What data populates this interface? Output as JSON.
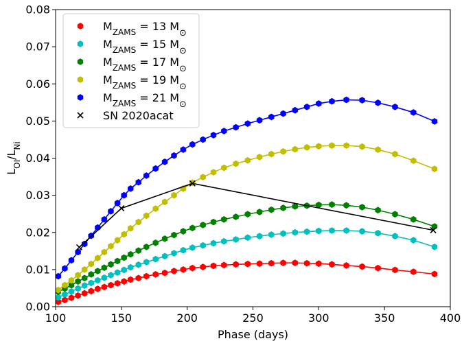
{
  "chart_data": {
    "type": "scatter",
    "xlabel": "Phase (days)",
    "ylabel": {
      "base": "L",
      "sub1": "OI",
      "sep": "/",
      "base2": "L",
      "sub2": "Ni"
    },
    "xlim": [
      100,
      400
    ],
    "ylim": [
      0.0,
      0.08
    ],
    "xticks": [
      "100",
      "150",
      "200",
      "250",
      "300",
      "350",
      "400"
    ],
    "yticks": [
      "0.00",
      "0.01",
      "0.02",
      "0.03",
      "0.04",
      "0.05",
      "0.06",
      "0.07",
      "0.08"
    ],
    "grid": false,
    "legend_position": "top-left",
    "series": [
      {
        "name": "M_ZAMS = 13 M_sun",
        "label_parts": {
          "pre": "M",
          "sub": "ZAMS",
          "post": " = 13 M",
          "sym": "⊙"
        },
        "color": "#ff0000",
        "marker": "hexagon",
        "x": [
          102,
          107,
          112,
          117,
          122,
          127,
          132,
          137,
          142,
          147,
          152,
          157,
          163,
          169,
          176,
          183,
          190,
          197,
          204,
          212,
          220,
          228,
          237,
          246,
          255,
          264,
          273,
          282,
          291,
          300,
          310,
          321,
          333,
          345,
          358,
          372,
          388
        ],
        "y": [
          0.0013,
          0.0018,
          0.0024,
          0.003,
          0.0036,
          0.0042,
          0.0048,
          0.0053,
          0.0058,
          0.0063,
          0.0068,
          0.0073,
          0.0077,
          0.0082,
          0.0087,
          0.0091,
          0.0096,
          0.01,
          0.0104,
          0.0107,
          0.011,
          0.0112,
          0.0114,
          0.0115,
          0.0116,
          0.0117,
          0.0118,
          0.0118,
          0.0117,
          0.0116,
          0.0114,
          0.0111,
          0.0108,
          0.0104,
          0.0099,
          0.0094,
          0.0088
        ]
      },
      {
        "name": "M_ZAMS = 15 M_sun",
        "label_parts": {
          "pre": "M",
          "sub": "ZAMS",
          "post": " = 15 M",
          "sym": "⊙"
        },
        "color": "#00bfbf",
        "marker": "hexagon",
        "x": [
          102,
          107,
          112,
          117,
          122,
          127,
          132,
          137,
          142,
          147,
          152,
          157,
          163,
          169,
          176,
          183,
          190,
          197,
          204,
          212,
          220,
          228,
          237,
          246,
          255,
          264,
          273,
          282,
          291,
          300,
          310,
          321,
          333,
          345,
          358,
          372,
          388
        ],
        "y": [
          0.0025,
          0.0033,
          0.0041,
          0.0049,
          0.0057,
          0.0064,
          0.0071,
          0.0078,
          0.0085,
          0.0092,
          0.0099,
          0.0106,
          0.0113,
          0.012,
          0.0128,
          0.0136,
          0.0144,
          0.0152,
          0.0159,
          0.0165,
          0.0171,
          0.0176,
          0.0181,
          0.0186,
          0.019,
          0.0194,
          0.0197,
          0.02,
          0.0202,
          0.0204,
          0.0205,
          0.0205,
          0.0203,
          0.0198,
          0.019,
          0.0179,
          0.0161
        ]
      },
      {
        "name": "M_ZAMS = 17 M_sun",
        "label_parts": {
          "pre": "M",
          "sub": "ZAMS",
          "post": " = 17 M",
          "sym": "⊙"
        },
        "color": "#008000",
        "marker": "hexagon",
        "x": [
          102,
          107,
          112,
          117,
          122,
          127,
          132,
          137,
          142,
          147,
          152,
          157,
          163,
          169,
          176,
          183,
          190,
          197,
          204,
          212,
          220,
          228,
          237,
          246,
          255,
          264,
          273,
          282,
          291,
          300,
          310,
          321,
          333,
          345,
          358,
          372,
          388
        ],
        "y": [
          0.004,
          0.0049,
          0.0058,
          0.0068,
          0.0077,
          0.0087,
          0.0096,
          0.0105,
          0.0114,
          0.0123,
          0.0132,
          0.0141,
          0.0151,
          0.0161,
          0.0172,
          0.0183,
          0.0193,
          0.0203,
          0.0212,
          0.022,
          0.0228,
          0.0235,
          0.0242,
          0.0249,
          0.0255,
          0.0261,
          0.0266,
          0.027,
          0.0272,
          0.0274,
          0.0275,
          0.0273,
          0.0268,
          0.026,
          0.0249,
          0.0235,
          0.0216
        ]
      },
      {
        "name": "M_ZAMS = 19 M_sun",
        "label_parts": {
          "pre": "M",
          "sub": "ZAMS",
          "post": " = 19 M",
          "sym": "⊙"
        },
        "color": "#bfbf00",
        "marker": "hexagon",
        "x": [
          102,
          107,
          112,
          117,
          122,
          127,
          132,
          137,
          142,
          147,
          152,
          157,
          163,
          169,
          176,
          183,
          190,
          197,
          204,
          212,
          220,
          228,
          237,
          246,
          255,
          264,
          273,
          282,
          291,
          300,
          310,
          321,
          333,
          345,
          358,
          372,
          388
        ],
        "y": [
          0.0045,
          0.0058,
          0.0071,
          0.0085,
          0.01,
          0.0115,
          0.0131,
          0.0147,
          0.0163,
          0.0179,
          0.0195,
          0.0211,
          0.0228,
          0.0245,
          0.0264,
          0.0282,
          0.03,
          0.0318,
          0.0334,
          0.0349,
          0.0362,
          0.0374,
          0.0385,
          0.0394,
          0.0403,
          0.0411,
          0.0418,
          0.0424,
          0.0429,
          0.0432,
          0.0434,
          0.0434,
          0.0431,
          0.0423,
          0.0411,
          0.0393,
          0.0371
        ]
      },
      {
        "name": "M_ZAMS = 21 M_sun",
        "label_parts": {
          "pre": "M",
          "sub": "ZAMS",
          "post": " = 21 M",
          "sym": "⊙"
        },
        "color": "#0000ff",
        "marker": "hexagon",
        "x": [
          102,
          107,
          112,
          117,
          122,
          127,
          132,
          137,
          142,
          147,
          152,
          157,
          163,
          169,
          176,
          183,
          190,
          197,
          204,
          212,
          220,
          228,
          237,
          246,
          255,
          264,
          273,
          282,
          291,
          300,
          310,
          321,
          333,
          345,
          358,
          372,
          388
        ],
        "y": [
          0.0082,
          0.0103,
          0.0125,
          0.0147,
          0.0169,
          0.0191,
          0.0213,
          0.0235,
          0.0257,
          0.0279,
          0.03,
          0.0318,
          0.0335,
          0.0353,
          0.0372,
          0.039,
          0.0407,
          0.0423,
          0.0437,
          0.045,
          0.0462,
          0.0473,
          0.0483,
          0.0493,
          0.0502,
          0.0511,
          0.052,
          0.0529,
          0.0538,
          0.0547,
          0.0553,
          0.0557,
          0.0556,
          0.0549,
          0.0538,
          0.0523,
          0.0499
        ]
      },
      {
        "name": "SN 2020acat",
        "label_parts": {
          "pre": "SN 2020acat",
          "sub": "",
          "post": "",
          "sym": ""
        },
        "color": "#000000",
        "marker": "x",
        "x": [
          118,
          150,
          204,
          387
        ],
        "y": [
          0.016,
          0.0265,
          0.0332,
          0.0206
        ]
      }
    ]
  }
}
